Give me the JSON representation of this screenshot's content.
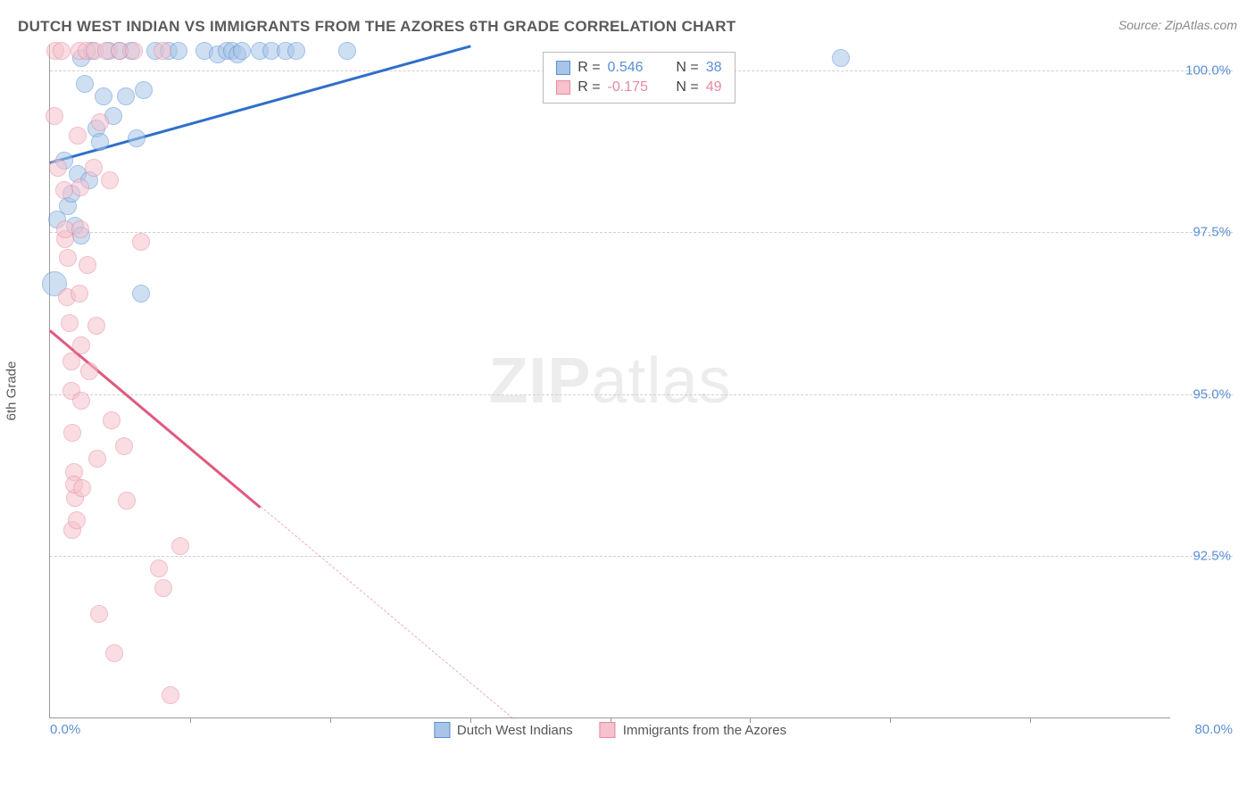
{
  "header": {
    "title": "DUTCH WEST INDIAN VS IMMIGRANTS FROM THE AZORES 6TH GRADE CORRELATION CHART",
    "source": "Source: ZipAtlas.com"
  },
  "chart": {
    "type": "scatter",
    "y_axis_label": "6th Grade",
    "watermark_zip": "ZIP",
    "watermark_atlas": "atlas",
    "background_color": "#ffffff",
    "grid_color": "#d0d0d0",
    "axis_color": "#999999",
    "label_color": "#5b8fd6",
    "title_fontsize": 17,
    "label_fontsize": 15,
    "xlim": [
      0,
      80
    ],
    "ylim": [
      90,
      100.4
    ],
    "x_range_labels": [
      {
        "pos": 0,
        "text": "0.0%"
      },
      {
        "pos": 80,
        "text": "80.0%"
      }
    ],
    "x_ticks": [
      10,
      20,
      30,
      40,
      50,
      60,
      70
    ],
    "y_ticks": [
      {
        "val": 100.0,
        "label": "100.0%"
      },
      {
        "val": 97.5,
        "label": "97.5%"
      },
      {
        "val": 95.0,
        "label": "95.0%"
      },
      {
        "val": 92.5,
        "label": "92.5%"
      }
    ],
    "series": [
      {
        "name": "Dutch West Indians",
        "fill_color": "#a8c5e8",
        "stroke_color": "#5b8fd6",
        "fill_opacity": 0.55,
        "marker_radius": 10,
        "trend": {
          "x1": 0,
          "y1": 98.6,
          "x2": 30,
          "y2": 100.4,
          "color": "#2f6fc9",
          "solid_until_x": 30
        },
        "stats": {
          "R_label": "R = ",
          "R": "0.546",
          "N_label": "N = ",
          "N": "38"
        },
        "points": [
          [
            0.3,
            96.7,
            14
          ],
          [
            0.5,
            97.7,
            10
          ],
          [
            1.0,
            98.6,
            10
          ],
          [
            1.3,
            97.9,
            10
          ],
          [
            1.5,
            98.1,
            10
          ],
          [
            1.8,
            97.6,
            10
          ],
          [
            2.0,
            98.4,
            10
          ],
          [
            2.2,
            100.2,
            10
          ],
          [
            2.5,
            99.8,
            10
          ],
          [
            2.8,
            98.3,
            10
          ],
          [
            2.2,
            97.45,
            10
          ],
          [
            3.0,
            100.3,
            10
          ],
          [
            3.3,
            99.1,
            10
          ],
          [
            3.6,
            98.9,
            10
          ],
          [
            3.8,
            99.6,
            10
          ],
          [
            4.2,
            100.3,
            10
          ],
          [
            4.5,
            99.3,
            10
          ],
          [
            5.0,
            100.3,
            10
          ],
          [
            5.4,
            99.6,
            10
          ],
          [
            5.8,
            100.3,
            10
          ],
          [
            6.2,
            98.95,
            10
          ],
          [
            6.7,
            99.7,
            10
          ],
          [
            6.5,
            96.55,
            10
          ],
          [
            7.5,
            100.3,
            10
          ],
          [
            8.5,
            100.3,
            10
          ],
          [
            9.2,
            100.3,
            10
          ],
          [
            11.0,
            100.3,
            10
          ],
          [
            12.0,
            100.25,
            10
          ],
          [
            12.6,
            100.3,
            10
          ],
          [
            13.0,
            100.3,
            10
          ],
          [
            13.4,
            100.25,
            10
          ],
          [
            13.7,
            100.3,
            10
          ],
          [
            15.0,
            100.3,
            10
          ],
          [
            15.8,
            100.3,
            10
          ],
          [
            16.8,
            100.3,
            10
          ],
          [
            17.6,
            100.3,
            10
          ],
          [
            21.2,
            100.3,
            10
          ],
          [
            56.5,
            100.2,
            10
          ]
        ]
      },
      {
        "name": "Immigrants from the Azores",
        "fill_color": "#f5c2cd",
        "stroke_color": "#e68aa0",
        "fill_opacity": 0.55,
        "marker_radius": 10,
        "trend": {
          "x1": 0,
          "y1": 96.0,
          "x2": 33,
          "y2": 90.0,
          "color": "#e05a7d",
          "solid_until_x": 15
        },
        "stats": {
          "R_label": "R = ",
          "R": "-0.175",
          "N_label": "N = ",
          "N": "49"
        },
        "points": [
          [
            0.3,
            99.3,
            10
          ],
          [
            0.4,
            100.3,
            10
          ],
          [
            0.6,
            98.5,
            10
          ],
          [
            0.8,
            100.3,
            10
          ],
          [
            1.0,
            98.15,
            10
          ],
          [
            1.1,
            97.4,
            10
          ],
          [
            1.2,
            96.5,
            10
          ],
          [
            1.1,
            97.55,
            10
          ],
          [
            1.3,
            97.1,
            10
          ],
          [
            1.4,
            96.1,
            10
          ],
          [
            1.5,
            95.5,
            10
          ],
          [
            1.5,
            95.05,
            10
          ],
          [
            1.6,
            94.4,
            10
          ],
          [
            1.7,
            93.8,
            10
          ],
          [
            1.8,
            93.4,
            10
          ],
          [
            1.75,
            93.6,
            10
          ],
          [
            1.6,
            92.9,
            10
          ],
          [
            1.9,
            93.05,
            10
          ],
          [
            2.0,
            99.0,
            10
          ],
          [
            2.1,
            100.3,
            10
          ],
          [
            2.15,
            98.2,
            10
          ],
          [
            2.15,
            97.55,
            10
          ],
          [
            2.1,
            96.55,
            10
          ],
          [
            2.2,
            95.75,
            10
          ],
          [
            2.25,
            94.9,
            10
          ],
          [
            2.3,
            93.55,
            10
          ],
          [
            2.6,
            100.3,
            10
          ],
          [
            2.7,
            97.0,
            10
          ],
          [
            2.8,
            95.35,
            10
          ],
          [
            3.1,
            98.5,
            10
          ],
          [
            3.2,
            100.3,
            10
          ],
          [
            3.3,
            96.05,
            10
          ],
          [
            3.4,
            94.0,
            10
          ],
          [
            3.5,
            91.6,
            10
          ],
          [
            3.6,
            99.2,
            10
          ],
          [
            4.0,
            100.3,
            10
          ],
          [
            4.3,
            98.3,
            10
          ],
          [
            4.4,
            94.6,
            10
          ],
          [
            4.6,
            91.0,
            10
          ],
          [
            5.0,
            100.3,
            10
          ],
          [
            5.3,
            94.2,
            10
          ],
          [
            5.5,
            93.35,
            10
          ],
          [
            6.0,
            100.3,
            10
          ],
          [
            6.5,
            97.35,
            10
          ],
          [
            7.8,
            92.3,
            10
          ],
          [
            8.0,
            100.3,
            10
          ],
          [
            8.1,
            92.0,
            10
          ],
          [
            8.6,
            90.35,
            10
          ],
          [
            9.3,
            92.65,
            10
          ]
        ]
      }
    ],
    "stats_box": {
      "left_pct": 44,
      "top_pct": 1
    },
    "legend": [
      {
        "label": "Dutch West Indians",
        "fill": "#a8c5e8",
        "stroke": "#5b8fd6"
      },
      {
        "label": "Immigrants from the Azores",
        "fill": "#f5c2cd",
        "stroke": "#e68aa0"
      }
    ]
  }
}
